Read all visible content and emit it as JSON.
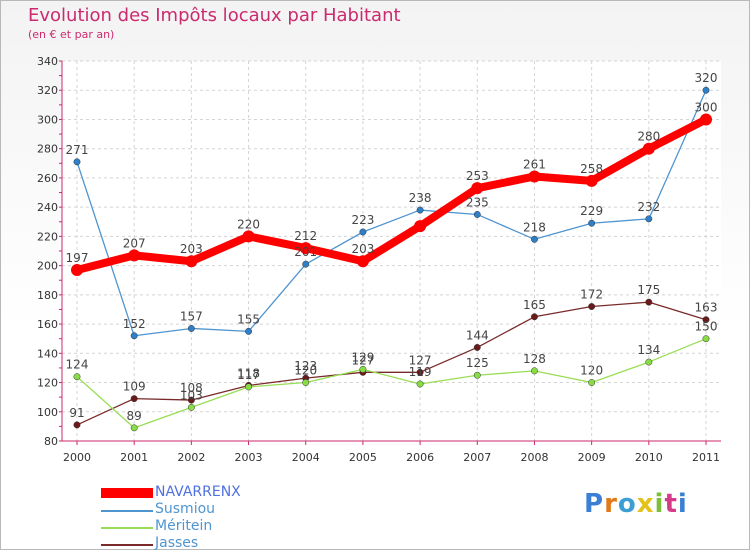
{
  "header": {
    "title": "Evolution des Impôts locaux par Habitant",
    "subtitle": "(en € et par an)"
  },
  "brand": {
    "logo_text": "Proxiti"
  },
  "chart_data": {
    "type": "line",
    "title": "Evolution des Impôts locaux par Habitant",
    "subtitle": "(en € et par an)",
    "xlabel": "",
    "ylabel": "",
    "categories": [
      "2000",
      "2001",
      "2002",
      "2003",
      "2004",
      "2005",
      "2006",
      "2007",
      "2008",
      "2009",
      "2010",
      "2011"
    ],
    "yticks": [
      "80",
      "100",
      "120",
      "140",
      "160",
      "180",
      "200",
      "220",
      "240",
      "260",
      "280",
      "300",
      "320",
      "340"
    ],
    "ylim": [
      80,
      340
    ],
    "legend_position": "bottom-left",
    "series": [
      {
        "name": "NAVARRENX",
        "color": "#ff0000",
        "values": [
          197,
          207,
          203,
          220,
          212,
          203,
          227,
          253,
          261,
          258,
          280,
          300
        ],
        "labels": [
          "197",
          "207",
          "203",
          "220",
          "212",
          "203",
          "",
          "253",
          "261",
          "258",
          "280",
          "300"
        ]
      },
      {
        "name": "Susmiou",
        "color": "#4f95d0",
        "values": [
          271,
          152,
          157,
          155,
          201,
          223,
          238,
          235,
          218,
          229,
          232,
          320
        ],
        "labels": [
          "271",
          "152",
          "157",
          "155",
          "201",
          "223",
          "238",
          "235",
          "218",
          "229",
          "232",
          "320"
        ]
      },
      {
        "name": "Méritein",
        "color": "#99dd55",
        "values": [
          124,
          89,
          103,
          117,
          120,
          129,
          119,
          125,
          128,
          120,
          134,
          150
        ],
        "labels": [
          "124",
          "89",
          "103",
          "117",
          "120",
          "129",
          "119",
          "125",
          "128",
          "120",
          "134",
          "150"
        ]
      },
      {
        "name": "Jasses",
        "color": "#7a2a2a",
        "values": [
          91,
          109,
          108,
          118,
          123,
          127,
          127,
          144,
          165,
          172,
          175,
          163
        ],
        "labels": [
          "91",
          "109",
          "108",
          "118",
          "123",
          "127",
          "127",
          "144",
          "165",
          "172",
          "175",
          "163"
        ]
      }
    ]
  }
}
